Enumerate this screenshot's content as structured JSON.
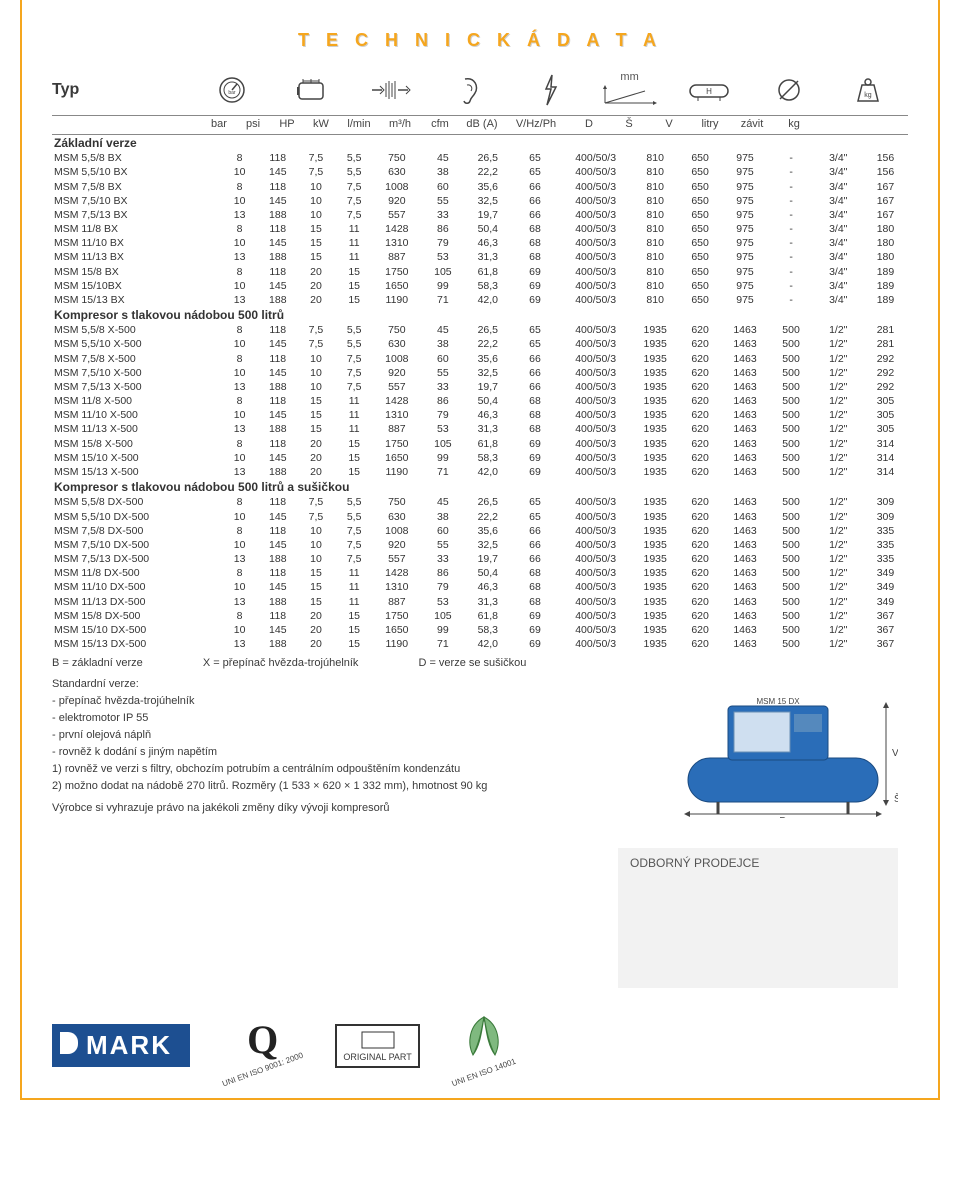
{
  "title": "T E C H N I C K Á   D A T A",
  "typ_label": "Typ",
  "mm_label": "mm",
  "units": [
    "",
    "bar",
    "psi",
    "HP",
    "kW",
    "l/min",
    "m³/h",
    "cfm",
    "dB (A)",
    "V/Hz/Ph",
    "D",
    "Š",
    "V",
    "litry",
    "závit",
    "kg"
  ],
  "sections": [
    {
      "title": "Základní verze",
      "rows": [
        [
          "MSM 5,5/8 BX",
          "8",
          "118",
          "7,5",
          "5,5",
          "750",
          "45",
          "26,5",
          "65",
          "400/50/3",
          "810",
          "650",
          "975",
          "-",
          "3/4\"",
          "156"
        ],
        [
          "MSM 5,5/10 BX",
          "10",
          "145",
          "7,5",
          "5,5",
          "630",
          "38",
          "22,2",
          "65",
          "400/50/3",
          "810",
          "650",
          "975",
          "-",
          "3/4\"",
          "156"
        ],
        [
          "MSM 7,5/8 BX",
          "8",
          "118",
          "10",
          "7,5",
          "1008",
          "60",
          "35,6",
          "66",
          "400/50/3",
          "810",
          "650",
          "975",
          "-",
          "3/4\"",
          "167"
        ],
        [
          "MSM 7,5/10 BX",
          "10",
          "145",
          "10",
          "7,5",
          "920",
          "55",
          "32,5",
          "66",
          "400/50/3",
          "810",
          "650",
          "975",
          "-",
          "3/4\"",
          "167"
        ],
        [
          "MSM 7,5/13 BX",
          "13",
          "188",
          "10",
          "7,5",
          "557",
          "33",
          "19,7",
          "66",
          "400/50/3",
          "810",
          "650",
          "975",
          "-",
          "3/4\"",
          "167"
        ],
        [
          "MSM 11/8 BX",
          "8",
          "118",
          "15",
          "11",
          "1428",
          "86",
          "50,4",
          "68",
          "400/50/3",
          "810",
          "650",
          "975",
          "-",
          "3/4\"",
          "180"
        ],
        [
          "MSM 11/10 BX",
          "10",
          "145",
          "15",
          "11",
          "1310",
          "79",
          "46,3",
          "68",
          "400/50/3",
          "810",
          "650",
          "975",
          "-",
          "3/4\"",
          "180"
        ],
        [
          "MSM 11/13 BX",
          "13",
          "188",
          "15",
          "11",
          "887",
          "53",
          "31,3",
          "68",
          "400/50/3",
          "810",
          "650",
          "975",
          "-",
          "3/4\"",
          "180"
        ],
        [
          "MSM 15/8 BX",
          "8",
          "118",
          "20",
          "15",
          "1750",
          "105",
          "61,8",
          "69",
          "400/50/3",
          "810",
          "650",
          "975",
          "-",
          "3/4\"",
          "189"
        ],
        [
          "MSM 15/10BX",
          "10",
          "145",
          "20",
          "15",
          "1650",
          "99",
          "58,3",
          "69",
          "400/50/3",
          "810",
          "650",
          "975",
          "-",
          "3/4\"",
          "189"
        ],
        [
          "MSM 15/13 BX",
          "13",
          "188",
          "20",
          "15",
          "1190",
          "71",
          "42,0",
          "69",
          "400/50/3",
          "810",
          "650",
          "975",
          "-",
          "3/4\"",
          "189"
        ]
      ]
    },
    {
      "title": "Kompresor s tlakovou nádobou 500 litrů",
      "rows": [
        [
          "MSM 5,5/8 X-500",
          "8",
          "118",
          "7,5",
          "5,5",
          "750",
          "45",
          "26,5",
          "65",
          "400/50/3",
          "1935",
          "620",
          "1463",
          "500",
          "1/2\"",
          "281"
        ],
        [
          "MSM 5,5/10 X-500",
          "10",
          "145",
          "7,5",
          "5,5",
          "630",
          "38",
          "22,2",
          "65",
          "400/50/3",
          "1935",
          "620",
          "1463",
          "500",
          "1/2\"",
          "281"
        ],
        [
          "MSM 7,5/8 X-500",
          "8",
          "118",
          "10",
          "7,5",
          "1008",
          "60",
          "35,6",
          "66",
          "400/50/3",
          "1935",
          "620",
          "1463",
          "500",
          "1/2\"",
          "292"
        ],
        [
          "MSM 7,5/10 X-500",
          "10",
          "145",
          "10",
          "7,5",
          "920",
          "55",
          "32,5",
          "66",
          "400/50/3",
          "1935",
          "620",
          "1463",
          "500",
          "1/2\"",
          "292"
        ],
        [
          "MSM 7,5/13 X-500",
          "13",
          "188",
          "10",
          "7,5",
          "557",
          "33",
          "19,7",
          "66",
          "400/50/3",
          "1935",
          "620",
          "1463",
          "500",
          "1/2\"",
          "292"
        ],
        [
          "MSM 11/8 X-500",
          "8",
          "118",
          "15",
          "11",
          "1428",
          "86",
          "50,4",
          "68",
          "400/50/3",
          "1935",
          "620",
          "1463",
          "500",
          "1/2\"",
          "305"
        ],
        [
          "MSM 11/10 X-500",
          "10",
          "145",
          "15",
          "11",
          "1310",
          "79",
          "46,3",
          "68",
          "400/50/3",
          "1935",
          "620",
          "1463",
          "500",
          "1/2\"",
          "305"
        ],
        [
          "MSM 11/13 X-500",
          "13",
          "188",
          "15",
          "11",
          "887",
          "53",
          "31,3",
          "68",
          "400/50/3",
          "1935",
          "620",
          "1463",
          "500",
          "1/2\"",
          "305"
        ],
        [
          "MSM 15/8 X-500",
          "8",
          "118",
          "20",
          "15",
          "1750",
          "105",
          "61,8",
          "69",
          "400/50/3",
          "1935",
          "620",
          "1463",
          "500",
          "1/2\"",
          "314"
        ],
        [
          "MSM 15/10 X-500",
          "10",
          "145",
          "20",
          "15",
          "1650",
          "99",
          "58,3",
          "69",
          "400/50/3",
          "1935",
          "620",
          "1463",
          "500",
          "1/2\"",
          "314"
        ],
        [
          "MSM 15/13 X-500",
          "13",
          "188",
          "20",
          "15",
          "1190",
          "71",
          "42,0",
          "69",
          "400/50/3",
          "1935",
          "620",
          "1463",
          "500",
          "1/2\"",
          "314"
        ]
      ]
    },
    {
      "title": "Kompresor s tlakovou nádobou 500 litrů a sušičkou",
      "rows": [
        [
          "MSM 5,5/8 DX-500",
          "8",
          "118",
          "7,5",
          "5,5",
          "750",
          "45",
          "26,5",
          "65",
          "400/50/3",
          "1935",
          "620",
          "1463",
          "500",
          "1/2\"",
          "309"
        ],
        [
          "MSM 5,5/10 DX-500",
          "10",
          "145",
          "7,5",
          "5,5",
          "630",
          "38",
          "22,2",
          "65",
          "400/50/3",
          "1935",
          "620",
          "1463",
          "500",
          "1/2\"",
          "309"
        ],
        [
          "MSM 7,5/8 DX-500",
          "8",
          "118",
          "10",
          "7,5",
          "1008",
          "60",
          "35,6",
          "66",
          "400/50/3",
          "1935",
          "620",
          "1463",
          "500",
          "1/2\"",
          "335"
        ],
        [
          "MSM 7,5/10 DX-500",
          "10",
          "145",
          "10",
          "7,5",
          "920",
          "55",
          "32,5",
          "66",
          "400/50/3",
          "1935",
          "620",
          "1463",
          "500",
          "1/2\"",
          "335"
        ],
        [
          "MSM 7,5/13 DX-500",
          "13",
          "188",
          "10",
          "7,5",
          "557",
          "33",
          "19,7",
          "66",
          "400/50/3",
          "1935",
          "620",
          "1463",
          "500",
          "1/2\"",
          "335"
        ],
        [
          "MSM 11/8 DX-500",
          "8",
          "118",
          "15",
          "11",
          "1428",
          "86",
          "50,4",
          "68",
          "400/50/3",
          "1935",
          "620",
          "1463",
          "500",
          "1/2\"",
          "349"
        ],
        [
          "MSM 11/10 DX-500",
          "10",
          "145",
          "15",
          "11",
          "1310",
          "79",
          "46,3",
          "68",
          "400/50/3",
          "1935",
          "620",
          "1463",
          "500",
          "1/2\"",
          "349"
        ],
        [
          "MSM 11/13 DX-500",
          "13",
          "188",
          "15",
          "11",
          "887",
          "53",
          "31,3",
          "68",
          "400/50/3",
          "1935",
          "620",
          "1463",
          "500",
          "1/2\"",
          "349"
        ],
        [
          "MSM 15/8 DX-500",
          "8",
          "118",
          "20",
          "15",
          "1750",
          "105",
          "61,8",
          "69",
          "400/50/3",
          "1935",
          "620",
          "1463",
          "500",
          "1/2\"",
          "367"
        ],
        [
          "MSM 15/10 DX-500",
          "10",
          "145",
          "20",
          "15",
          "1650",
          "99",
          "58,3",
          "69",
          "400/50/3",
          "1935",
          "620",
          "1463",
          "500",
          "1/2\"",
          "367"
        ],
        [
          "MSM 15/13 DX-500",
          "13",
          "188",
          "20",
          "15",
          "1190",
          "71",
          "42,0",
          "69",
          "400/50/3",
          "1935",
          "620",
          "1463",
          "500",
          "1/2\"",
          "367"
        ]
      ]
    }
  ],
  "legend": {
    "b": "B = základní verze",
    "x": "X = přepínač hvězda-trojúhelník",
    "d": "D = verze se sušičkou"
  },
  "notes": {
    "std": "Standardní verze:",
    "n1": "- přepínač hvězda-trojúhelník",
    "n2": "- elektromotor IP 55",
    "n3": "- první olejová náplň",
    "n4": "- rovněž k dodání s jiným napětím",
    "n5": "1) rovněž ve verzi s filtry, obchozím potrubím a centrálním odpouštěním kondenzátu",
    "n6": "2) možno dodat na nádobě 270 litrů. Rozměry (1 533 × 620 × 1 332 mm), hmotnost 90 kg",
    "disclaimer": "Výrobce si vyhrazuje právo na jakékoli změny díky vývoji kompresorů"
  },
  "dealer_label": "ODBORNÝ PRODEJCE",
  "logo_text": "MARK",
  "q_text": "Q",
  "original_part": "ORIGINAL PART",
  "iso9001": "UNI EN ISO 9001: 2000",
  "iso14001": "UNI EN ISO 14001",
  "compressor_labels": {
    "v": "V",
    "d": "D",
    "s": "Š"
  },
  "colors": {
    "accent": "#f5a61e",
    "brand_blue": "#1d4f91",
    "text": "#3a3a3a",
    "border": "#888888",
    "dealer_bg": "#f2f2f2"
  }
}
